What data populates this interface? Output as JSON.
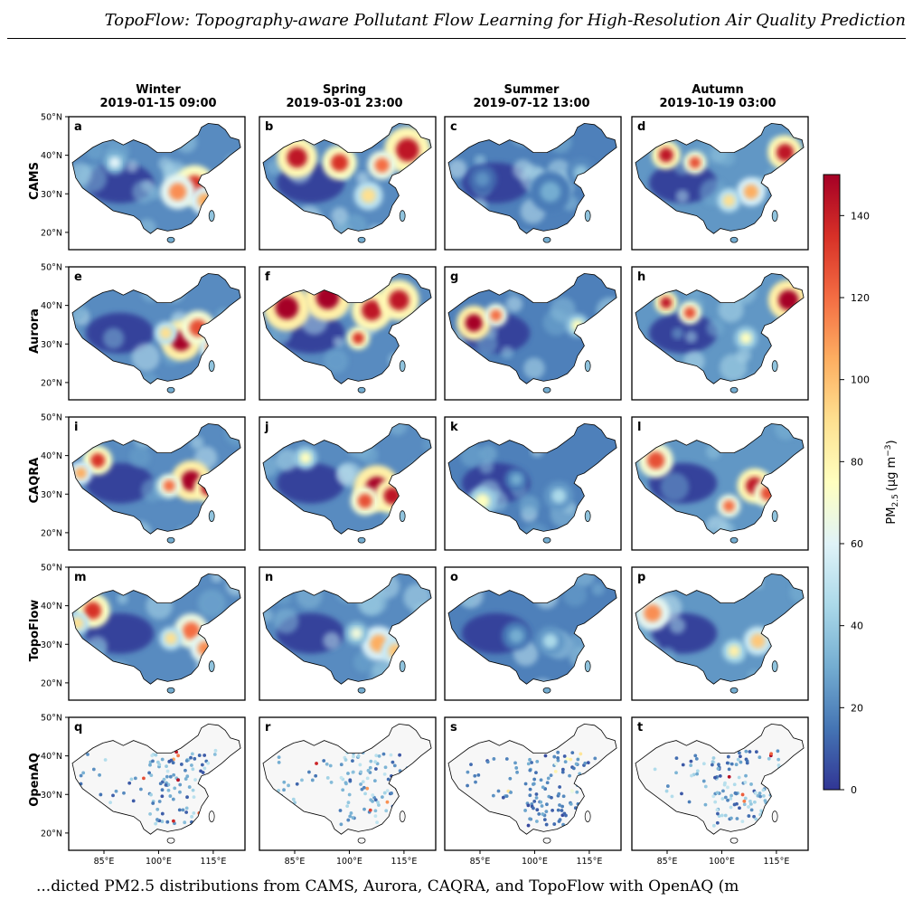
{
  "header": {
    "running_title": "TopoFlow: Topography-aware Pollutant Flow Learning for High-Resolution Air Quality Prediction"
  },
  "figure": {
    "columns": [
      {
        "season": "Winter",
        "datetime": "2019-01-15 09:00"
      },
      {
        "season": "Spring",
        "datetime": "2019-03-01 23:00"
      },
      {
        "season": "Summer",
        "datetime": "2019-07-12 13:00"
      },
      {
        "season": "Autumn",
        "datetime": "2019-10-19 03:00"
      }
    ],
    "rows": [
      "CAMS",
      "Aurora",
      "CAQRA",
      "TopoFlow",
      "OpenAQ"
    ],
    "panel_letters": [
      "a",
      "b",
      "c",
      "d",
      "e",
      "f",
      "g",
      "h",
      "i",
      "j",
      "k",
      "l",
      "m",
      "n",
      "o",
      "p",
      "q",
      "r",
      "s",
      "t"
    ],
    "y_ticks": [
      "50°N",
      "40°N",
      "30°N",
      "20°N"
    ],
    "x_ticks": [
      "85°E",
      "100°E",
      "115°E"
    ],
    "colorbar": {
      "label": "PM",
      "label_sub": "2.5",
      "label_unit": "(μg m",
      "label_sup": "−3",
      "label_close": ")",
      "ticks": [
        "0",
        "20",
        "40",
        "60",
        "80",
        "100",
        "120",
        "140"
      ],
      "range": [
        0,
        150
      ],
      "colormap": "RdYlBu_r",
      "colors": [
        "#313695",
        "#4575b4",
        "#74add1",
        "#abd9e9",
        "#e0f3f8",
        "#ffffbf",
        "#fee090",
        "#fdae61",
        "#f46d43",
        "#d73027",
        "#a50026"
      ]
    }
  },
  "caption": {
    "partial_text": "...dicted PM2.5 distributions from CAMS, Aurora, CAQRA, and TopoFlow with OpenAQ (m"
  }
}
